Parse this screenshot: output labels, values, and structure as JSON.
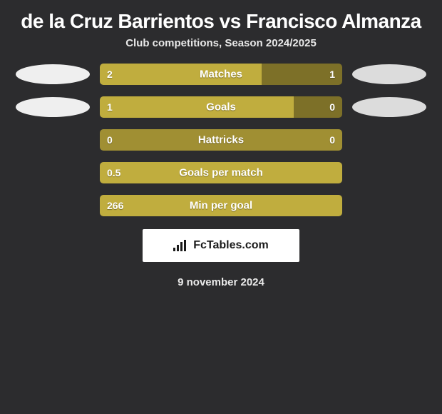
{
  "title": "de la Cruz Barrientos vs Francisco Almanza",
  "subtitle": "Club competitions, Season 2024/2025",
  "brand": "FcTables.com",
  "date": "9 november 2024",
  "colors": {
    "bg": "#2c2c2e",
    "neutral": "#a08f33",
    "win": "#c0ad3e",
    "lose": "#7d7028",
    "badgeLeft": "#efefef",
    "badgeRight": "#dcdcdc",
    "text": "#ffffff"
  },
  "rows": [
    {
      "label": "Matches",
      "left": "2",
      "right": "1",
      "leftPct": 66.7,
      "rightPct": 33.3,
      "leftClass": "win",
      "rightClass": "lose",
      "badges": true
    },
    {
      "label": "Goals",
      "left": "1",
      "right": "0",
      "leftPct": 80,
      "rightPct": 20,
      "leftClass": "win",
      "rightClass": "lose",
      "badges": true
    },
    {
      "label": "Hattricks",
      "left": "0",
      "right": "0",
      "leftPct": 50,
      "rightPct": 50,
      "leftClass": "neutral",
      "rightClass": "neutral",
      "badges": false
    },
    {
      "label": "Goals per match",
      "left": "0.5",
      "right": "",
      "leftPct": 100,
      "rightPct": 0,
      "leftClass": "win",
      "rightClass": "win",
      "badges": false
    },
    {
      "label": "Min per goal",
      "left": "266",
      "right": "",
      "leftPct": 100,
      "rightPct": 0,
      "leftClass": "win",
      "rightClass": "win",
      "badges": false
    }
  ]
}
